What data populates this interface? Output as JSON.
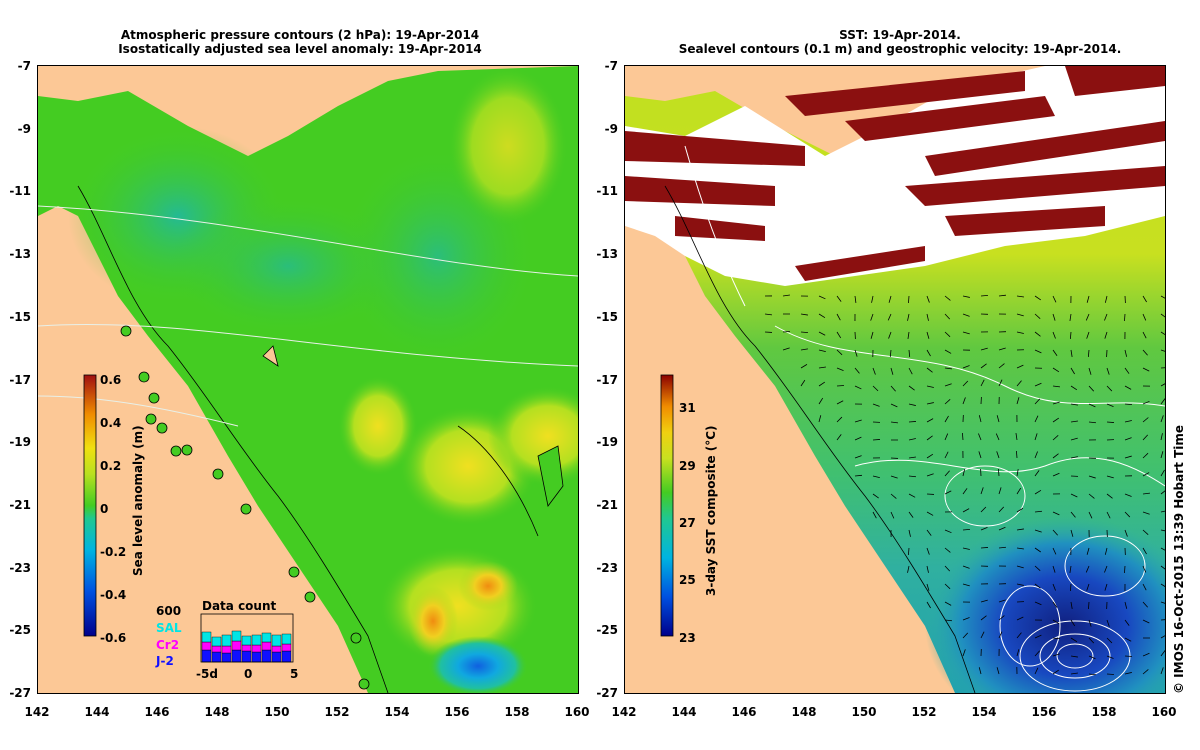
{
  "left_panel": {
    "title_line1": "Atmospheric pressure contours (2 hPa): 19-Apr-2014",
    "title_line2": "Isostatically adjusted sea level anomaly: 19-Apr-2014",
    "colorbar_label": "Sea level anomaly (m)",
    "colorbar_ticks": [
      "0.6",
      "0.4",
      "0.2",
      "0",
      "-0.2",
      "-0.4",
      "-0.6"
    ],
    "colorbar_range": [
      -0.6,
      0.6
    ],
    "data_count": {
      "title": "Data count",
      "max_label": "600",
      "series": [
        "SAL",
        "Cr2",
        "J-2"
      ],
      "series_colors": [
        "#00e5e5",
        "#ff00ff",
        "#1010ff"
      ],
      "x_ticks": [
        "-5d",
        "0",
        "5"
      ]
    }
  },
  "right_panel": {
    "title_line1": "SST: 19-Apr-2014.",
    "title_line2": "Sealevel contours (0.1 m) and geostrophic velocity: 19-Apr-2014.",
    "colorbar_label": "3-day SST composite (°C)",
    "colorbar_ticks": [
      "31",
      "29",
      "27",
      "25",
      "23"
    ],
    "colorbar_range": [
      23,
      32
    ]
  },
  "axes": {
    "x_ticks": [
      "142",
      "144",
      "146",
      "148",
      "150",
      "152",
      "154",
      "156",
      "158",
      "160"
    ],
    "y_ticks": [
      "-7",
      "-9",
      "-11",
      "-13",
      "-15",
      "-17",
      "-19",
      "-21",
      "-23",
      "-25",
      "-27"
    ],
    "x_range": [
      142,
      160
    ],
    "y_range": [
      -27,
      -7
    ]
  },
  "footer": "© IMOS 16-Oct-2015 13:39 Hobart Time",
  "colors": {
    "land": "#fcc896",
    "sla_zero": "#44cc22",
    "sst_warm": "#8b0000",
    "sst_cool": "#1030c0",
    "sst_mid": "#4cc84c"
  }
}
